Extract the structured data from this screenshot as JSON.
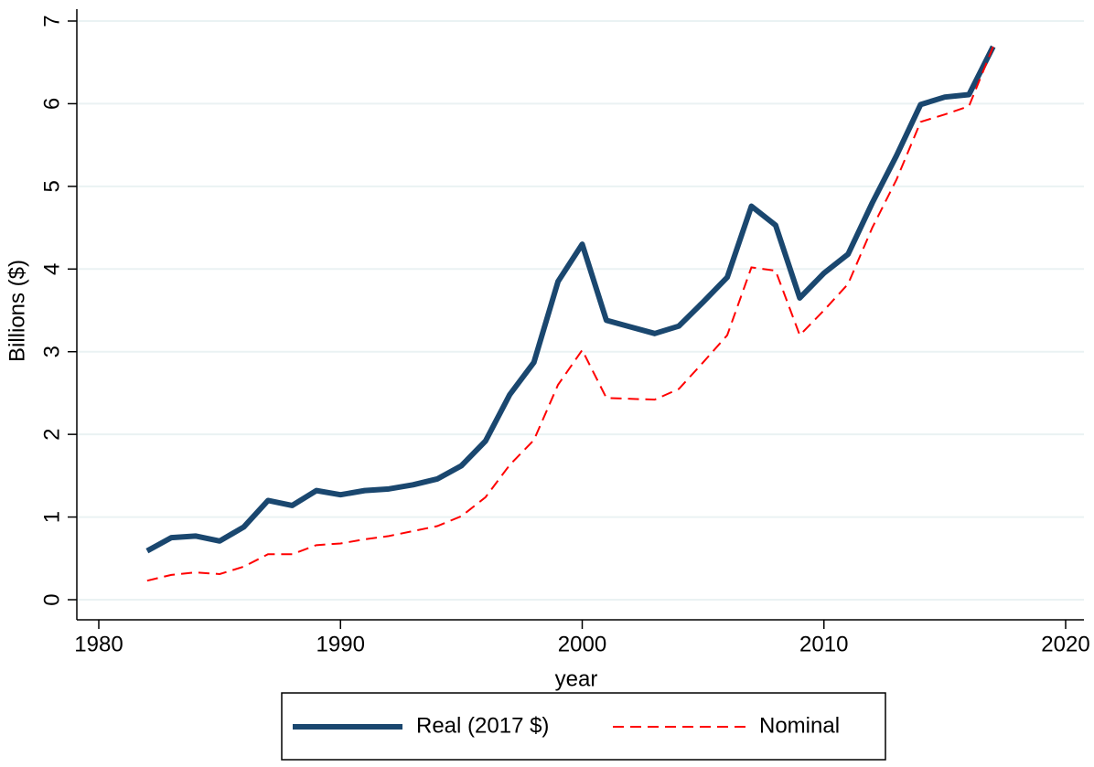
{
  "chart_data": {
    "type": "line",
    "x_label": "year",
    "y_label": "Billions ($)",
    "x": [
      1982,
      1983,
      1984,
      1985,
      1986,
      1987,
      1988,
      1989,
      1990,
      1991,
      1992,
      1993,
      1994,
      1995,
      1996,
      1997,
      1998,
      1999,
      2000,
      2001,
      2002,
      2003,
      2004,
      2005,
      2006,
      2007,
      2008,
      2009,
      2010,
      2011,
      2012,
      2013,
      2014,
      2015,
      2016,
      2017
    ],
    "series": [
      {
        "name": "Real (2017 $)",
        "color": "#1a476f",
        "style": "solid",
        "values": [
          0.59,
          0.75,
          0.77,
          0.71,
          0.88,
          1.2,
          1.14,
          1.32,
          1.27,
          1.32,
          1.34,
          1.39,
          1.46,
          1.62,
          1.92,
          2.48,
          2.87,
          3.85,
          4.3,
          3.38,
          3.3,
          3.22,
          3.31,
          3.6,
          3.9,
          4.76,
          4.53,
          3.65,
          3.95,
          4.18,
          4.8,
          5.37,
          5.99,
          6.08,
          6.11,
          6.69
        ]
      },
      {
        "name": "Nominal",
        "color": "#ff0000",
        "style": "dashed",
        "values": [
          0.23,
          0.3,
          0.33,
          0.31,
          0.4,
          0.55,
          0.55,
          0.66,
          0.68,
          0.73,
          0.77,
          0.83,
          0.89,
          1.01,
          1.24,
          1.63,
          1.93,
          2.6,
          3.02,
          2.44,
          2.43,
          2.42,
          2.55,
          2.87,
          3.2,
          4.02,
          3.98,
          3.2,
          3.5,
          3.82,
          4.5,
          5.08,
          5.78,
          5.87,
          5.97,
          6.69
        ]
      }
    ],
    "xlim": [
      1980,
      2020
    ],
    "xticks": [
      1980,
      1990,
      2000,
      2010,
      2020
    ],
    "ylim": [
      0,
      7
    ],
    "yticks": [
      0,
      1,
      2,
      3,
      4,
      5,
      6,
      7
    ],
    "grid": true,
    "legend": "bottom"
  }
}
